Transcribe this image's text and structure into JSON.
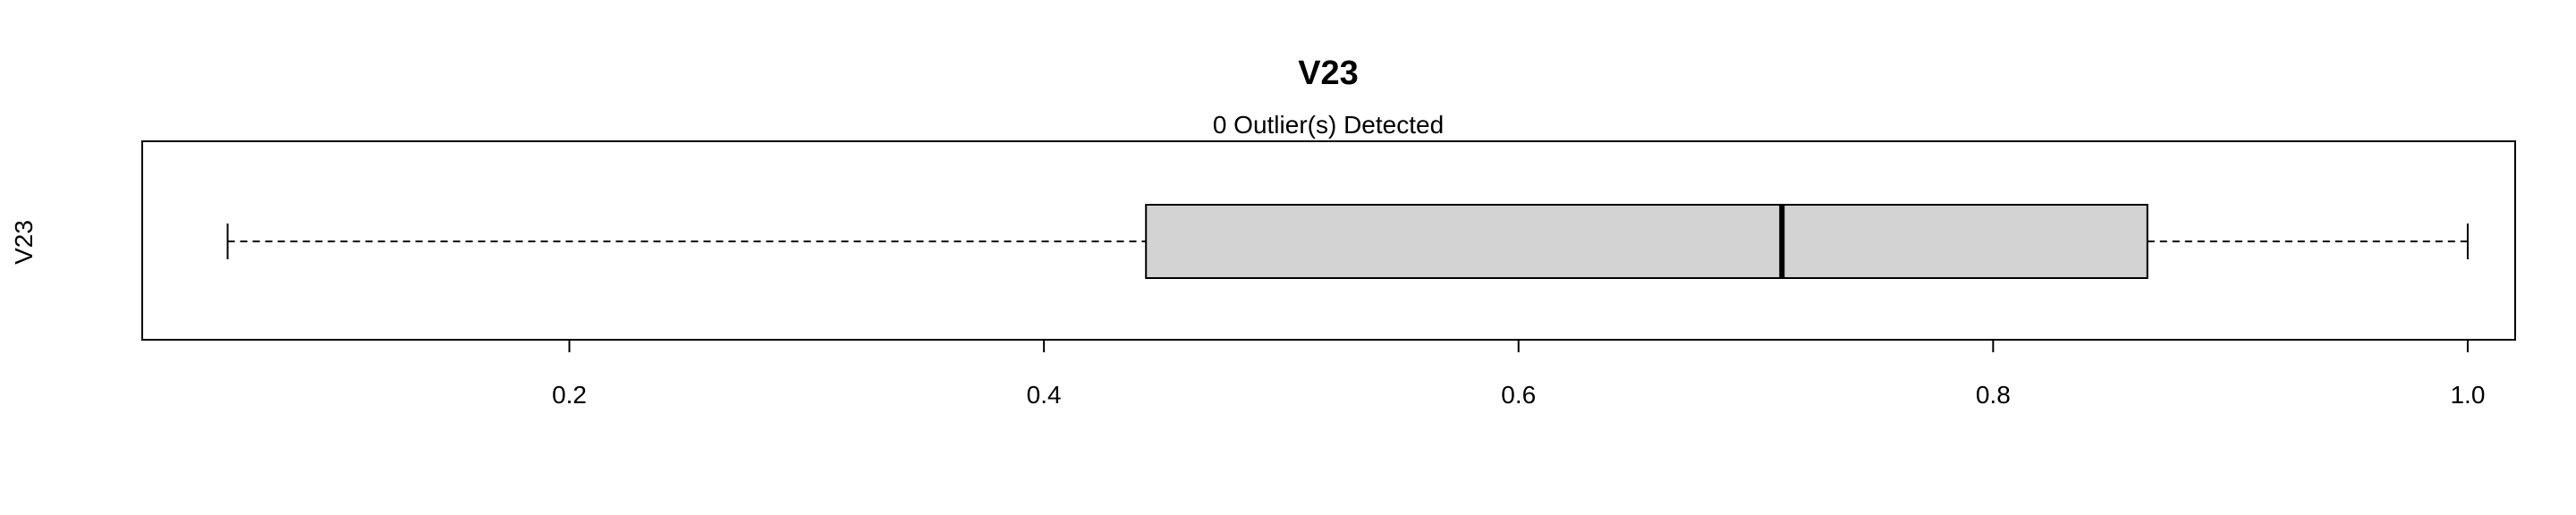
{
  "chart_data": {
    "type": "box",
    "title": "V23",
    "subtitle": "0 Outlier(s) Detected",
    "ylabel": "V23",
    "xlabel": "",
    "orientation": "horizontal",
    "xlim": [
      0.02,
      1.02
    ],
    "xticks": [
      0.2,
      0.4,
      0.6,
      0.8,
      1.0
    ],
    "xtick_labels": [
      "0.2",
      "0.4",
      "0.6",
      "0.8",
      "1.0"
    ],
    "series": [
      {
        "min": 0.056,
        "q1": 0.443,
        "median": 0.711,
        "q3": 0.865,
        "max": 1.0
      }
    ],
    "box_fill": "#d3d3d3",
    "line_color": "#000000",
    "grid": false
  }
}
